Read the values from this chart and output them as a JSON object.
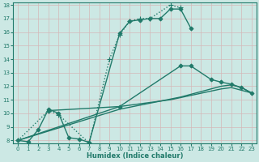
{
  "xlabel": "Humidex (Indice chaleur)",
  "background_color": "#cce8e4",
  "grid_color": "#b0d8d4",
  "line_color": "#217a6a",
  "xlim": [
    -0.5,
    23.5
  ],
  "ylim": [
    7.8,
    18.2
  ],
  "xticks": [
    0,
    1,
    2,
    3,
    4,
    5,
    6,
    7,
    8,
    9,
    10,
    11,
    12,
    13,
    14,
    15,
    16,
    17,
    18,
    19,
    20,
    21,
    22,
    23
  ],
  "yticks": [
    8,
    9,
    10,
    11,
    12,
    13,
    14,
    15,
    16,
    17,
    18
  ],
  "series": [
    {
      "x": [
        0,
        1,
        2,
        3,
        4,
        5,
        6,
        7,
        10,
        11,
        12,
        13,
        14,
        15,
        16,
        17
      ],
      "y": [
        8.0,
        7.9,
        8.8,
        10.3,
        10.0,
        8.2,
        8.1,
        7.85,
        15.9,
        16.8,
        16.9,
        17.0,
        17.0,
        17.7,
        17.7,
        16.3
      ],
      "marker": "D",
      "markersize": 2.5,
      "linewidth": 1.0
    },
    {
      "x": [
        0,
        3,
        4,
        7,
        9,
        10,
        11,
        12,
        13,
        15,
        16
      ],
      "y": [
        8.0,
        10.2,
        9.9,
        7.8,
        14.0,
        15.8,
        16.8,
        17.0,
        17.0,
        18.0,
        17.8
      ],
      "marker": "+",
      "markersize": 4,
      "linewidth": 1.0,
      "linestyle": "dotted"
    },
    {
      "x": [
        0,
        10,
        15,
        20,
        21,
        22,
        23
      ],
      "y": [
        8.0,
        10.5,
        11.0,
        11.8,
        11.9,
        11.7,
        11.5
      ],
      "marker": null,
      "markersize": 0,
      "linewidth": 1.0,
      "linestyle": "solid"
    },
    {
      "x": [
        0,
        10,
        16,
        20,
        21,
        22,
        23
      ],
      "y": [
        8.0,
        10.3,
        11.2,
        12.0,
        12.1,
        11.9,
        11.5
      ],
      "marker": null,
      "markersize": 0,
      "linewidth": 1.0,
      "linestyle": "solid"
    },
    {
      "x": [
        3,
        10,
        16,
        17,
        19,
        20,
        21,
        22,
        23
      ],
      "y": [
        10.2,
        10.5,
        13.5,
        13.5,
        12.5,
        12.3,
        12.15,
        11.9,
        11.5
      ],
      "marker": "D",
      "markersize": 2.5,
      "linewidth": 1.0,
      "linestyle": "solid"
    }
  ]
}
